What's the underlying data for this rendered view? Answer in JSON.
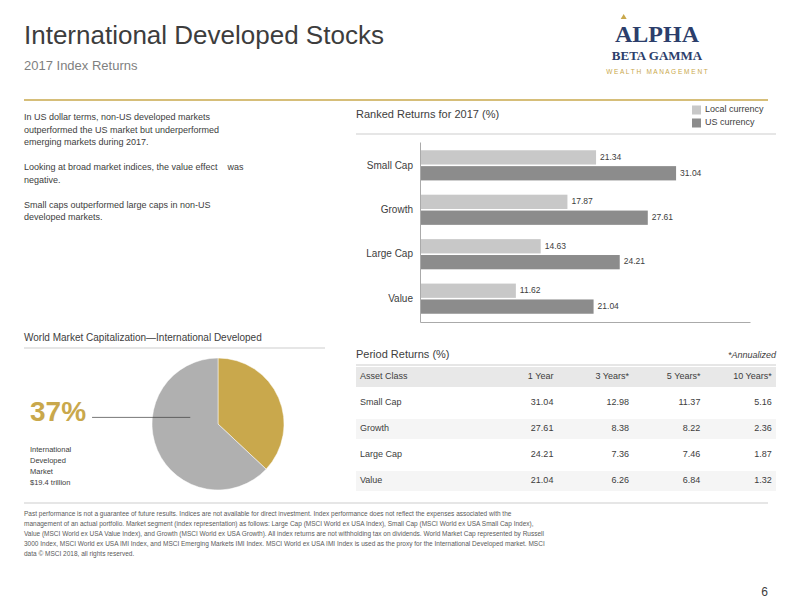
{
  "title": "International Developed Stocks",
  "subtitle": "2017 Index Returns",
  "logo": [
    "ALPHA",
    "BETA GAMMA",
    "W E A L T H   M A N A G E M E N T"
  ],
  "text_paragraphs": [
    [
      "In US dollar terms, non-US developed markets",
      "outperformed the US market but underperformed",
      "emerging markets during 2017."
    ],
    [
      "Looking at broad market indices, the value effect    was",
      "negative."
    ],
    [
      "Small caps outperformed large caps in non-US",
      "developed markets."
    ]
  ],
  "chart_data": [
    {
      "type": "bar",
      "orientation": "horizontal",
      "title": "Ranked Returns for 2017 (%)",
      "categories": [
        "Small Cap",
        "Growth",
        "Large Cap",
        "Value"
      ],
      "series": [
        {
          "name": "Local currency",
          "color": "#c8c8c8",
          "values": [
            21.34,
            17.87,
            14.63,
            11.62
          ]
        },
        {
          "name": "US currency",
          "color": "#8c8c8c",
          "values": [
            31.04,
            27.61,
            24.21,
            21.04
          ]
        }
      ],
      "xlim": [
        0,
        40
      ],
      "tick_labels": "y",
      "data_labels": true,
      "legend": "upper right",
      "grid": false
    },
    {
      "type": "pie",
      "title": "World Market Capitalization—International Developed",
      "values": [
        37,
        63
      ],
      "colors": [
        "#c9a84c",
        "#b0b0b0"
      ],
      "value_labels": [
        "37%",
        null
      ],
      "annotations": [
        "International",
        "Developed",
        "Market",
        "$19.4 trillion"
      ]
    }
  ],
  "table": {
    "title": "Period Returns (%)",
    "note": "*Annualized",
    "headers": [
      "Asset Class",
      "1 Year",
      "3 Years*",
      "5 Years*",
      "10 Years*"
    ],
    "rows": [
      [
        "Small Cap",
        "31.04",
        "12.98",
        "11.37",
        "5.16"
      ],
      [
        "Growth",
        "27.61",
        "8.38",
        "8.22",
        "2.36"
      ],
      [
        "Large Cap",
        "24.21",
        "7.36",
        "7.46",
        "1.87"
      ],
      [
        "Value",
        "21.04",
        "6.26",
        "6.84",
        "1.32"
      ]
    ]
  },
  "footer": [
    "Past performance is not a guarantee of future results. Indices are not available for direct investment. Index performance does not reflect the expenses associated with the",
    "management of an actual portfolio. Market segment (index representation) as follows: Large Cap (MSCI World ex USA Index), Small Cap (MSCI World ex USA Small Cap Index),",
    "Value (MSCI World ex USA Value Index), and Growth (MSCI World ex USA Growth). All index returns are not withholding tax on dividends. World Market Cap represented by Russell",
    "3000 Index, MSCI World ex USA IMI Index, and MSCI Emerging Markets IMI Index. MSCI World ex USA IMI Index is used as the proxy for the International Developed market. MSCI",
    "data © MSCI 2018, all rights reserved."
  ],
  "page_number": "6"
}
